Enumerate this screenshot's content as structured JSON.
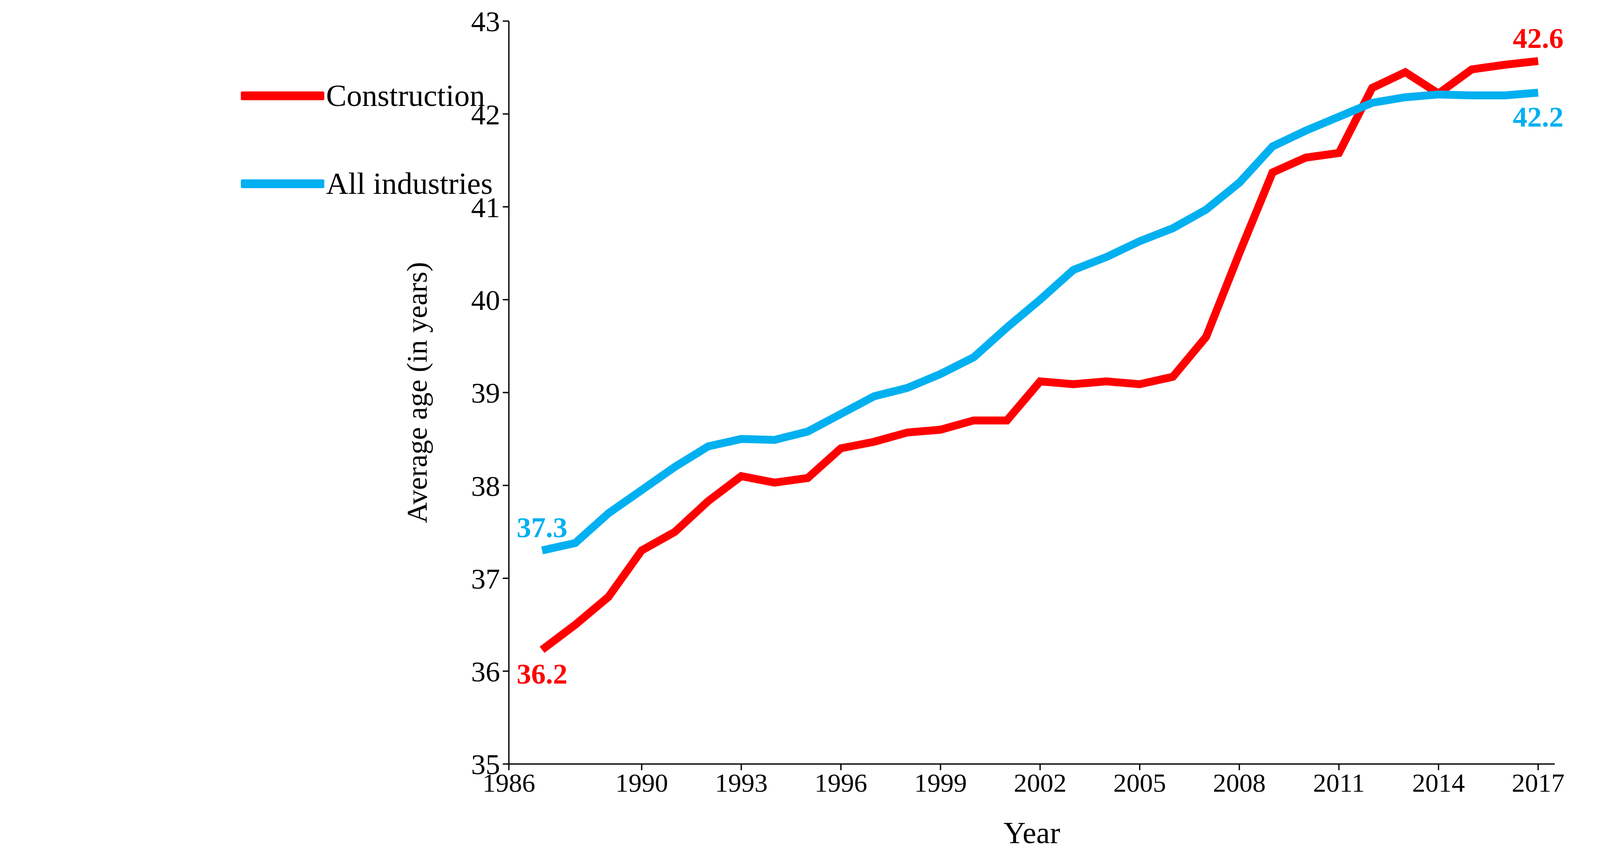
{
  "chart_data": {
    "type": "line",
    "x_label": "Year",
    "y_label": "Average age (in years)",
    "x": [
      1987,
      1988,
      1989,
      1990,
      1991,
      1992,
      1993,
      1994,
      1995,
      1996,
      1997,
      1998,
      1999,
      2000,
      2001,
      2002,
      2003,
      2004,
      2005,
      2006,
      2007,
      2008,
      2009,
      2010,
      2011,
      2012,
      2013,
      2014,
      2015,
      2016,
      2017
    ],
    "series": [
      {
        "name": "Construction",
        "color": "#ff0000",
        "values": [
          36.23,
          36.5,
          36.8,
          37.3,
          37.5,
          37.83,
          38.1,
          38.03,
          38.08,
          38.4,
          38.47,
          38.57,
          38.6,
          38.7,
          38.7,
          39.12,
          39.09,
          39.12,
          39.09,
          39.17,
          39.6,
          40.5,
          41.37,
          41.53,
          41.58,
          42.28,
          42.45,
          42.22,
          42.48,
          42.53,
          42.57
        ]
      },
      {
        "name": "All industries",
        "color": "#00b0f0",
        "values": [
          37.3,
          37.38,
          37.7,
          37.95,
          38.2,
          38.42,
          38.5,
          38.49,
          38.58,
          38.77,
          38.96,
          39.05,
          39.2,
          39.38,
          39.7,
          40.0,
          40.32,
          40.46,
          40.63,
          40.77,
          40.97,
          41.26,
          41.65,
          41.82,
          41.97,
          42.12,
          42.18,
          42.21,
          42.2,
          42.2,
          42.23
        ]
      }
    ],
    "xlim": [
      1986,
      2017.5
    ],
    "xticks": [
      1986,
      1990,
      1993,
      1996,
      1999,
      2002,
      2005,
      2008,
      2011,
      2014,
      2017
    ],
    "ylim": [
      35,
      43
    ],
    "yticks": [
      35,
      36,
      37,
      38,
      39,
      40,
      41,
      42,
      43
    ],
    "grid": false,
    "legend": "upper left",
    "annotations": [
      {
        "text": "37.3",
        "series": "All industries",
        "x": 1987
      },
      {
        "text": "36.2",
        "series": "Construction",
        "x": 1987
      },
      {
        "text": "42.6",
        "series": "Construction",
        "x": 2017
      },
      {
        "text": "42.2",
        "series": "All industries",
        "x": 2017
      }
    ]
  }
}
